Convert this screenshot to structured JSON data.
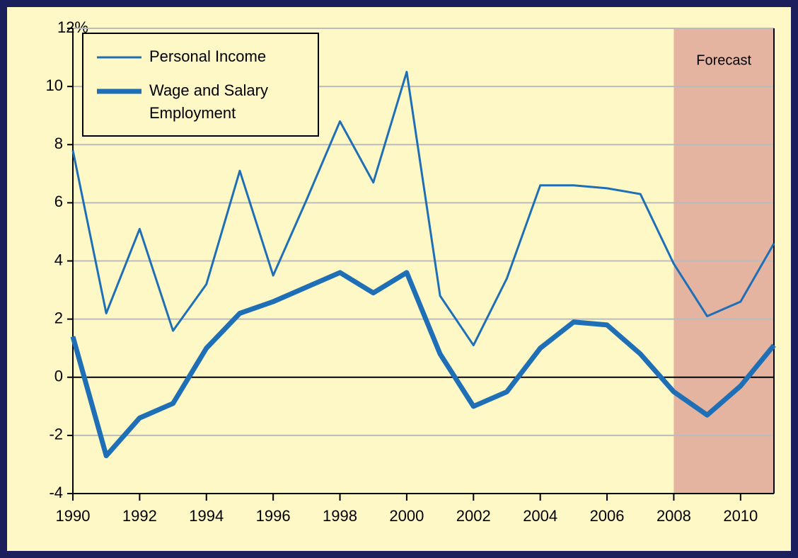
{
  "chart_data": {
    "type": "line",
    "x": [
      1990,
      1991,
      1992,
      1993,
      1994,
      1995,
      1996,
      1997,
      1998,
      1999,
      2000,
      2001,
      2002,
      2003,
      2004,
      2005,
      2006,
      2007,
      2008,
      2009,
      2010,
      2011
    ],
    "series": [
      {
        "name": "Personal Income",
        "color": "#1f6fb6",
        "line_width": 3,
        "values": [
          7.8,
          2.2,
          5.1,
          1.6,
          3.2,
          7.1,
          3.5,
          6.1,
          8.8,
          6.7,
          10.5,
          2.8,
          1.1,
          3.4,
          6.6,
          6.6,
          6.5,
          6.3,
          3.9,
          2.1,
          2.6,
          4.6
        ]
      },
      {
        "name": "Wage and Salary Employment",
        "color": "#1f6fb6",
        "line_width": 7,
        "values": [
          1.4,
          -2.7,
          -1.4,
          -0.9,
          1.0,
          2.2,
          2.6,
          3.1,
          3.6,
          2.9,
          3.6,
          0.8,
          -1.0,
          -0.5,
          1.0,
          1.9,
          1.8,
          0.8,
          -0.5,
          -1.3,
          -0.3,
          1.1
        ]
      }
    ],
    "xlim": [
      1990,
      2011
    ],
    "xticks": [
      1990,
      1992,
      1994,
      1996,
      1998,
      2000,
      2002,
      2004,
      2006,
      2008,
      2010
    ],
    "ylim": [
      -4,
      12
    ],
    "yticks": [
      -4,
      -2,
      0,
      2,
      4,
      6,
      8,
      10,
      {
        "value": 12,
        "label": "12%"
      }
    ],
    "grid": true,
    "legend": "upper left",
    "forecast": {
      "label": "Forecast",
      "start": 2008,
      "end": 2011,
      "color": "#e5b4a0"
    }
  }
}
